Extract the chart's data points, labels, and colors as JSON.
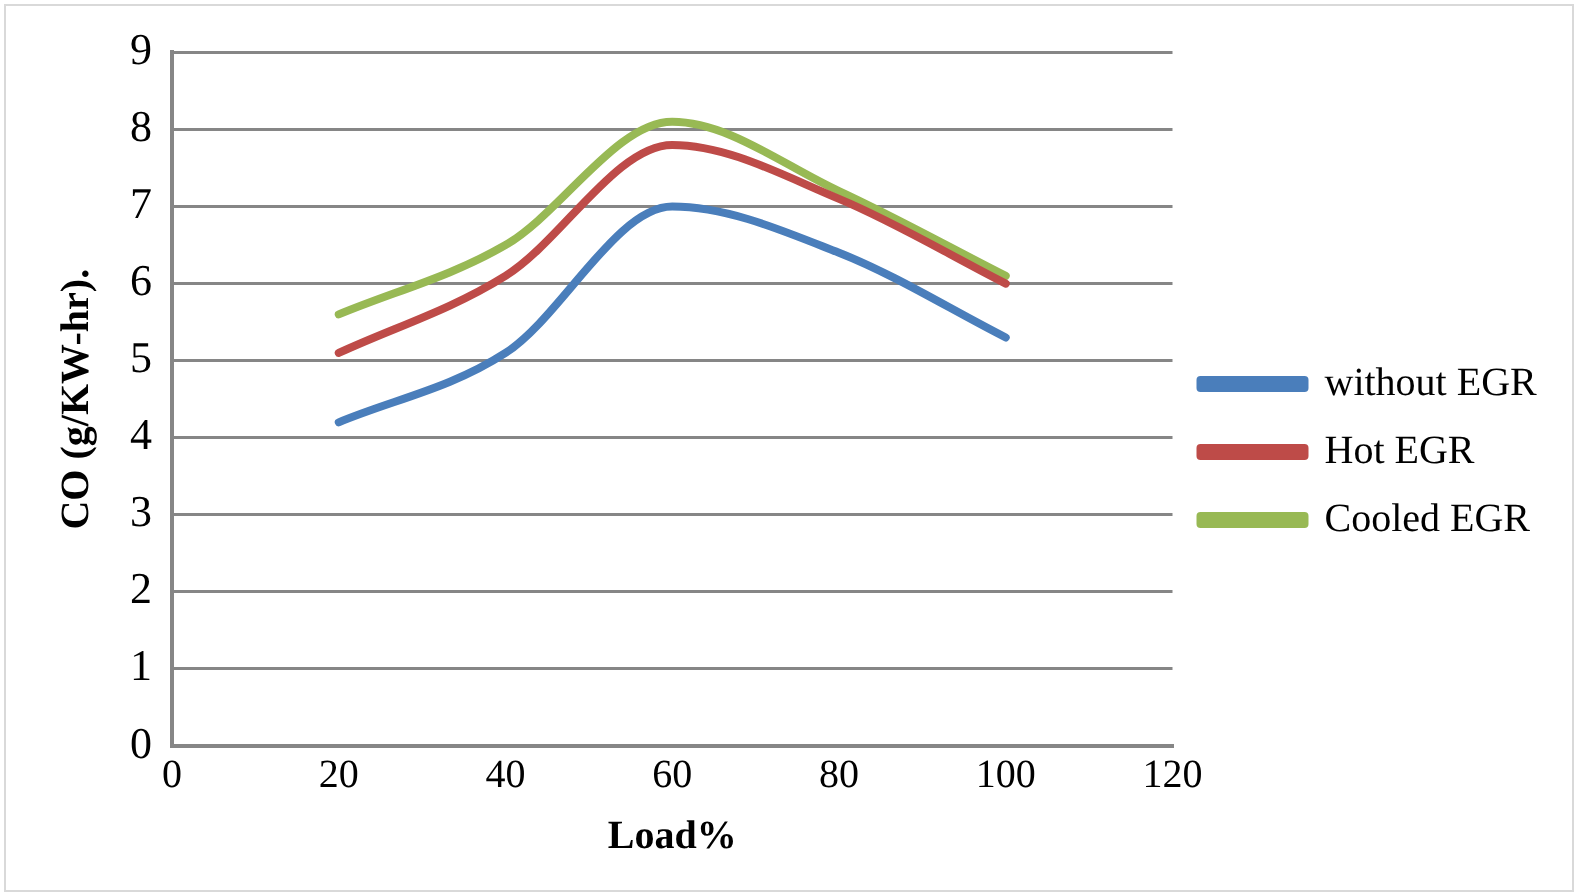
{
  "chart_data": {
    "type": "line",
    "xlabel": "Load%",
    "ylabel": "CO (g/KW-hr).",
    "x": [
      20,
      40,
      60,
      80,
      100
    ],
    "series": [
      {
        "name": "without EGR",
        "color": "#4a7ebb",
        "values": [
          4.2,
          5.1,
          7.0,
          6.4,
          5.3
        ]
      },
      {
        "name": "Hot EGR",
        "color": "#be4b48",
        "values": [
          5.1,
          6.1,
          7.8,
          7.1,
          6.0
        ]
      },
      {
        "name": "Cooled EGR",
        "color": "#98b954",
        "values": [
          5.6,
          6.5,
          8.1,
          7.2,
          6.1
        ]
      }
    ],
    "xlim": [
      0,
      120
    ],
    "xticks": [
      0,
      20,
      40,
      60,
      80,
      100,
      120
    ],
    "ylim": [
      0,
      9
    ],
    "yticks": [
      0,
      1,
      2,
      3,
      4,
      5,
      6,
      7,
      8,
      9
    ],
    "grid": "y",
    "legend": "right",
    "marker": "none",
    "line_style": "solid"
  }
}
